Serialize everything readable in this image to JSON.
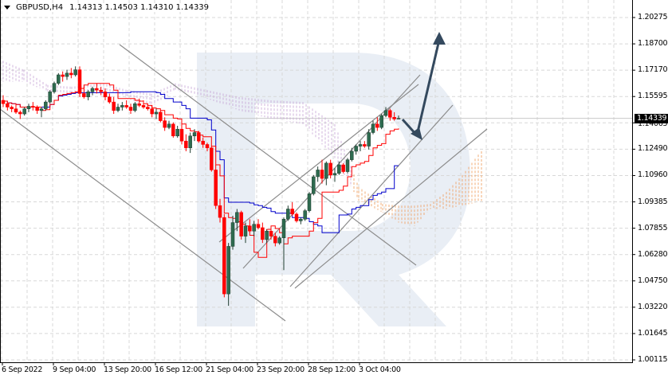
{
  "header": {
    "symbol": "GBPUSD,H4",
    "ohlc": "1.14313 1.14503 1.14310 1.14339",
    "dropdown_icon": "triangle-down-icon"
  },
  "current_price": "1.14339",
  "hidden_price_label": "1.14065",
  "colors": {
    "bull_candle": "#2e6b4f",
    "bear_candle": "#ff0000",
    "tenkan": "#ff0000",
    "kijun": "#0000cc",
    "cloud_a": "#f0a060",
    "cloud_b": "#c8a8d8",
    "trendline": "#8c8c8c",
    "arrow": "#34495e",
    "grid": "#d8d8d8",
    "watermark": "#e9eef5"
  },
  "chart_data": {
    "type": "candlestick",
    "title": "GBPUSD,H4",
    "subtitle": "1.14313 1.14503 1.14310 1.14339",
    "xlabel": "",
    "ylabel": "",
    "ylim": [
      1.00115,
      1.20275
    ],
    "y_ticks": [
      "1.20275",
      "1.18700",
      "1.17170",
      "1.15595",
      "1.14065",
      "1.12490",
      "1.10960",
      "1.09385",
      "1.07855",
      "1.06280",
      "1.04750",
      "1.03220",
      "1.01645",
      "1.00115"
    ],
    "x_ticks": [
      "6 Sep 2022",
      "9 Sep 04:00",
      "13 Sep 20:00",
      "16 Sep 12:00",
      "21 Sep 04:00",
      "23 Sep 20:00",
      "28 Sep 12:00",
      "3 Oct 04:00"
    ],
    "grid": true,
    "legend": [],
    "last_price": 1.14339,
    "indicators": [
      "Ichimoku Kinko Hyo (Tenkan-sen red, Kijun-sen blue, Kumo cloud dotted orange/violet)"
    ],
    "candles_ohlc": [
      [
        1.154,
        1.157,
        1.15,
        1.152
      ],
      [
        1.152,
        1.153,
        1.148,
        1.15
      ],
      [
        1.15,
        1.151,
        1.147,
        1.149
      ],
      [
        1.149,
        1.152,
        1.146,
        1.147
      ],
      [
        1.147,
        1.148,
        1.143,
        1.146
      ],
      [
        1.146,
        1.15,
        1.145,
        1.149
      ],
      [
        1.149,
        1.152,
        1.147,
        1.1505
      ],
      [
        1.1505,
        1.153,
        1.148,
        1.15
      ],
      [
        1.15,
        1.151,
        1.146,
        1.148
      ],
      [
        1.148,
        1.15,
        1.144,
        1.149
      ],
      [
        1.149,
        1.154,
        1.148,
        1.153
      ],
      [
        1.153,
        1.16,
        1.152,
        1.159
      ],
      [
        1.159,
        1.165,
        1.158,
        1.164
      ],
      [
        1.164,
        1.17,
        1.163,
        1.169
      ],
      [
        1.169,
        1.171,
        1.165,
        1.168
      ],
      [
        1.168,
        1.172,
        1.166,
        1.17
      ],
      [
        1.17,
        1.173,
        1.167,
        1.169
      ],
      [
        1.169,
        1.174,
        1.168,
        1.172
      ],
      [
        1.172,
        1.174,
        1.156,
        1.158
      ],
      [
        1.158,
        1.162,
        1.155,
        1.156
      ],
      [
        1.156,
        1.16,
        1.154,
        1.159
      ],
      [
        1.159,
        1.162,
        1.157,
        1.161
      ],
      [
        1.161,
        1.164,
        1.158,
        1.16
      ],
      [
        1.16,
        1.162,
        1.157,
        1.159
      ],
      [
        1.159,
        1.161,
        1.154,
        1.156
      ],
      [
        1.156,
        1.158,
        1.152,
        1.153
      ],
      [
        1.153,
        1.156,
        1.146,
        1.148
      ],
      [
        1.148,
        1.152,
        1.147,
        1.15
      ],
      [
        1.15,
        1.153,
        1.148,
        1.151
      ],
      [
        1.151,
        1.154,
        1.149,
        1.15
      ],
      [
        1.15,
        1.152,
        1.146,
        1.148
      ],
      [
        1.148,
        1.153,
        1.147,
        1.152
      ],
      [
        1.152,
        1.155,
        1.15,
        1.151
      ],
      [
        1.151,
        1.154,
        1.149,
        1.15
      ],
      [
        1.15,
        1.152,
        1.148,
        1.149
      ],
      [
        1.149,
        1.151,
        1.144,
        1.146
      ],
      [
        1.146,
        1.149,
        1.143,
        1.147
      ],
      [
        1.147,
        1.148,
        1.141,
        1.142
      ],
      [
        1.142,
        1.144,
        1.136,
        1.138
      ],
      [
        1.138,
        1.142,
        1.137,
        1.14
      ],
      [
        1.14,
        1.141,
        1.132,
        1.133
      ],
      [
        1.133,
        1.139,
        1.132,
        1.137
      ],
      [
        1.137,
        1.142,
        1.128,
        1.13
      ],
      [
        1.13,
        1.134,
        1.124,
        1.126
      ],
      [
        1.126,
        1.135,
        1.123,
        1.133
      ],
      [
        1.133,
        1.137,
        1.13,
        1.135
      ],
      [
        1.135,
        1.136,
        1.129,
        1.13
      ],
      [
        1.13,
        1.132,
        1.126,
        1.128
      ],
      [
        1.128,
        1.129,
        1.124,
        1.126
      ],
      [
        1.126,
        1.127,
        1.112,
        1.113
      ],
      [
        1.113,
        1.116,
        1.09,
        1.092
      ],
      [
        1.092,
        1.096,
        1.082,
        1.085
      ],
      [
        1.085,
        1.087,
        1.038,
        1.04
      ],
      [
        1.04,
        1.07,
        1.033,
        1.068
      ],
      [
        1.068,
        1.086,
        1.066,
        1.082
      ],
      [
        1.082,
        1.09,
        1.077,
        1.088
      ],
      [
        1.088,
        1.089,
        1.072,
        1.074
      ],
      [
        1.074,
        1.082,
        1.07,
        1.08
      ],
      [
        1.08,
        1.084,
        1.076,
        1.077
      ],
      [
        1.077,
        1.083,
        1.074,
        1.081
      ],
      [
        1.081,
        1.084,
        1.078,
        1.079
      ],
      [
        1.079,
        1.082,
        1.07,
        1.072
      ],
      [
        1.072,
        1.078,
        1.07,
        1.077
      ],
      [
        1.077,
        1.078,
        1.072,
        1.074
      ],
      [
        1.074,
        1.076,
        1.068,
        1.07
      ],
      [
        1.07,
        1.074,
        1.069,
        1.073
      ],
      [
        1.073,
        1.085,
        1.054,
        1.084
      ],
      [
        1.084,
        1.092,
        1.083,
        1.09
      ],
      [
        1.09,
        1.094,
        1.086,
        1.087
      ],
      [
        1.087,
        1.088,
        1.082,
        1.083
      ],
      [
        1.083,
        1.085,
        1.081,
        1.084
      ],
      [
        1.084,
        1.09,
        1.083,
        1.089
      ],
      [
        1.089,
        1.1,
        1.088,
        1.099
      ],
      [
        1.099,
        1.11,
        1.098,
        1.109
      ],
      [
        1.109,
        1.115,
        1.106,
        1.113
      ],
      [
        1.113,
        1.119,
        1.105,
        1.108
      ],
      [
        1.108,
        1.118,
        1.104,
        1.117
      ],
      [
        1.117,
        1.119,
        1.108,
        1.11
      ],
      [
        1.11,
        1.114,
        1.106,
        1.111
      ],
      [
        1.111,
        1.118,
        1.11,
        1.116
      ],
      [
        1.116,
        1.117,
        1.111,
        1.112
      ],
      [
        1.112,
        1.12,
        1.111,
        1.119
      ],
      [
        1.119,
        1.126,
        1.118,
        1.124
      ],
      [
        1.124,
        1.128,
        1.122,
        1.127
      ],
      [
        1.127,
        1.13,
        1.124,
        1.128
      ],
      [
        1.128,
        1.13,
        1.126,
        1.127
      ],
      [
        1.127,
        1.137,
        1.125,
        1.135
      ],
      [
        1.135,
        1.142,
        1.134,
        1.14
      ],
      [
        1.14,
        1.144,
        1.136,
        1.138
      ],
      [
        1.138,
        1.146,
        1.137,
        1.145
      ],
      [
        1.145,
        1.15,
        1.144,
        1.148
      ],
      [
        1.148,
        1.149,
        1.142,
        1.144
      ],
      [
        1.144,
        1.147,
        1.142,
        1.143
      ],
      [
        1.1431,
        1.145,
        1.1431,
        1.1434
      ]
    ],
    "annotations": [
      "descending channel trendlines (grey)",
      "ascending channel trendlines (grey)",
      "forecast arrow: short dip to ~1.1270 then rise toward ~1.2000"
    ]
  }
}
